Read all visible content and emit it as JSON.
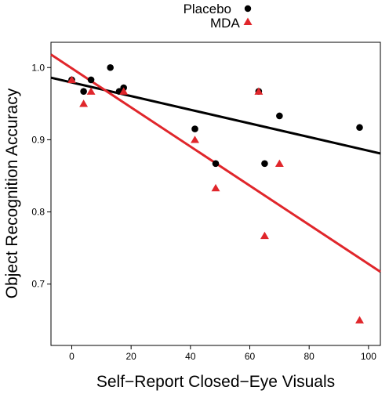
{
  "chart_data": {
    "type": "scatter",
    "title": "",
    "xlabel": "Self−Report Closed−Eye Visuals",
    "ylabel": "Object Recognition Accuracy",
    "xlim": [
      -7,
      104
    ],
    "ylim": [
      0.615,
      1.035
    ],
    "xticks": [
      0,
      20,
      40,
      60,
      80,
      100
    ],
    "yticks": [
      0.7,
      0.8,
      0.9,
      1.0
    ],
    "x_tick_labels": [
      "0",
      "20",
      "40",
      "60",
      "80",
      "100"
    ],
    "y_tick_labels": [
      "0.7",
      "0.8",
      "0.9",
      "1.0"
    ],
    "grid": false,
    "legend": {
      "placement": "top-center"
    },
    "series": [
      {
        "name": "Placebo",
        "marker": "circle",
        "color": "#000000",
        "points": [
          {
            "x": 0,
            "y": 0.983
          },
          {
            "x": 4,
            "y": 0.967
          },
          {
            "x": 6.5,
            "y": 0.983
          },
          {
            "x": 13,
            "y": 1.0
          },
          {
            "x": 16,
            "y": 0.967
          },
          {
            "x": 17.5,
            "y": 0.972
          },
          {
            "x": 41.5,
            "y": 0.915
          },
          {
            "x": 48.5,
            "y": 0.867
          },
          {
            "x": 63,
            "y": 0.967
          },
          {
            "x": 65,
            "y": 0.867
          },
          {
            "x": 70,
            "y": 0.933
          },
          {
            "x": 97,
            "y": 0.917
          }
        ],
        "fit_line": {
          "x": [
            -7,
            104
          ],
          "y": [
            0.986,
            0.881
          ]
        }
      },
      {
        "name": "MDA",
        "marker": "triangle",
        "color": "#e0262b",
        "points": [
          {
            "x": 0,
            "y": 0.983
          },
          {
            "x": 4,
            "y": 0.95
          },
          {
            "x": 6.5,
            "y": 0.967
          },
          {
            "x": 17.5,
            "y": 0.967
          },
          {
            "x": 41.5,
            "y": 0.9
          },
          {
            "x": 48.5,
            "y": 0.833
          },
          {
            "x": 63,
            "y": 0.967
          },
          {
            "x": 65,
            "y": 0.767
          },
          {
            "x": 70,
            "y": 0.867
          },
          {
            "x": 97,
            "y": 0.65
          }
        ],
        "fit_line": {
          "x": [
            -7,
            104
          ],
          "y": [
            1.018,
            0.717
          ]
        }
      }
    ]
  }
}
